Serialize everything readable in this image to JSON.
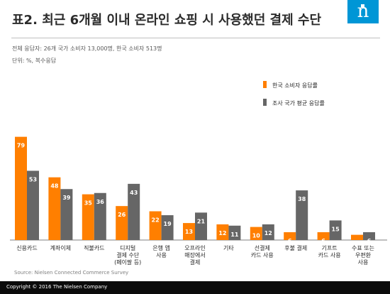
{
  "header": {
    "title": "표2. 최근 6개월 이내 온라인 쇼핑 시 사용했던 결제 수단",
    "subtitle_1": "전체 응답자: 26개 국가 소비자 13,000명, 한국 소비자 513명",
    "subtitle_2": "단위: %, 복수응답",
    "logo_letter": "n"
  },
  "colors": {
    "korea": "#ff7f00",
    "global": "#666666",
    "logo_bg": "#0096d6"
  },
  "chart_data": {
    "type": "bar",
    "categories": [
      [
        "신용카드"
      ],
      [
        "계좌이체"
      ],
      [
        "직불카드"
      ],
      [
        "디지털",
        "결제 수단",
        "(페이팔 등)"
      ],
      [
        "은행 앱",
        "사용"
      ],
      [
        "오프라인",
        "매장에서",
        "결제"
      ],
      [
        "기타"
      ],
      [
        "선결제",
        "카드 사용"
      ],
      [
        "후불 결제"
      ],
      [
        "기프트",
        "카드 사용"
      ],
      [
        "수표 또는",
        "우편환",
        "사용"
      ]
    ],
    "series": [
      {
        "name": "한국 소비자 응답률",
        "color": "#ff7f00",
        "values": [
          79,
          48,
          35,
          26,
          22,
          13,
          12,
          10,
          6,
          6,
          4
        ]
      },
      {
        "name": "조사 국가 평균 응답률",
        "color": "#666666",
        "values": [
          53,
          39,
          36,
          43,
          19,
          21,
          11,
          12,
          38,
          15,
          6
        ]
      }
    ],
    "legend_position": "top-right",
    "grid": false
  },
  "footer": {
    "source": "Source:  Nielsen Connected Commerce Survey",
    "copyright": "Copyright © 2016 The Nielsen Company"
  }
}
